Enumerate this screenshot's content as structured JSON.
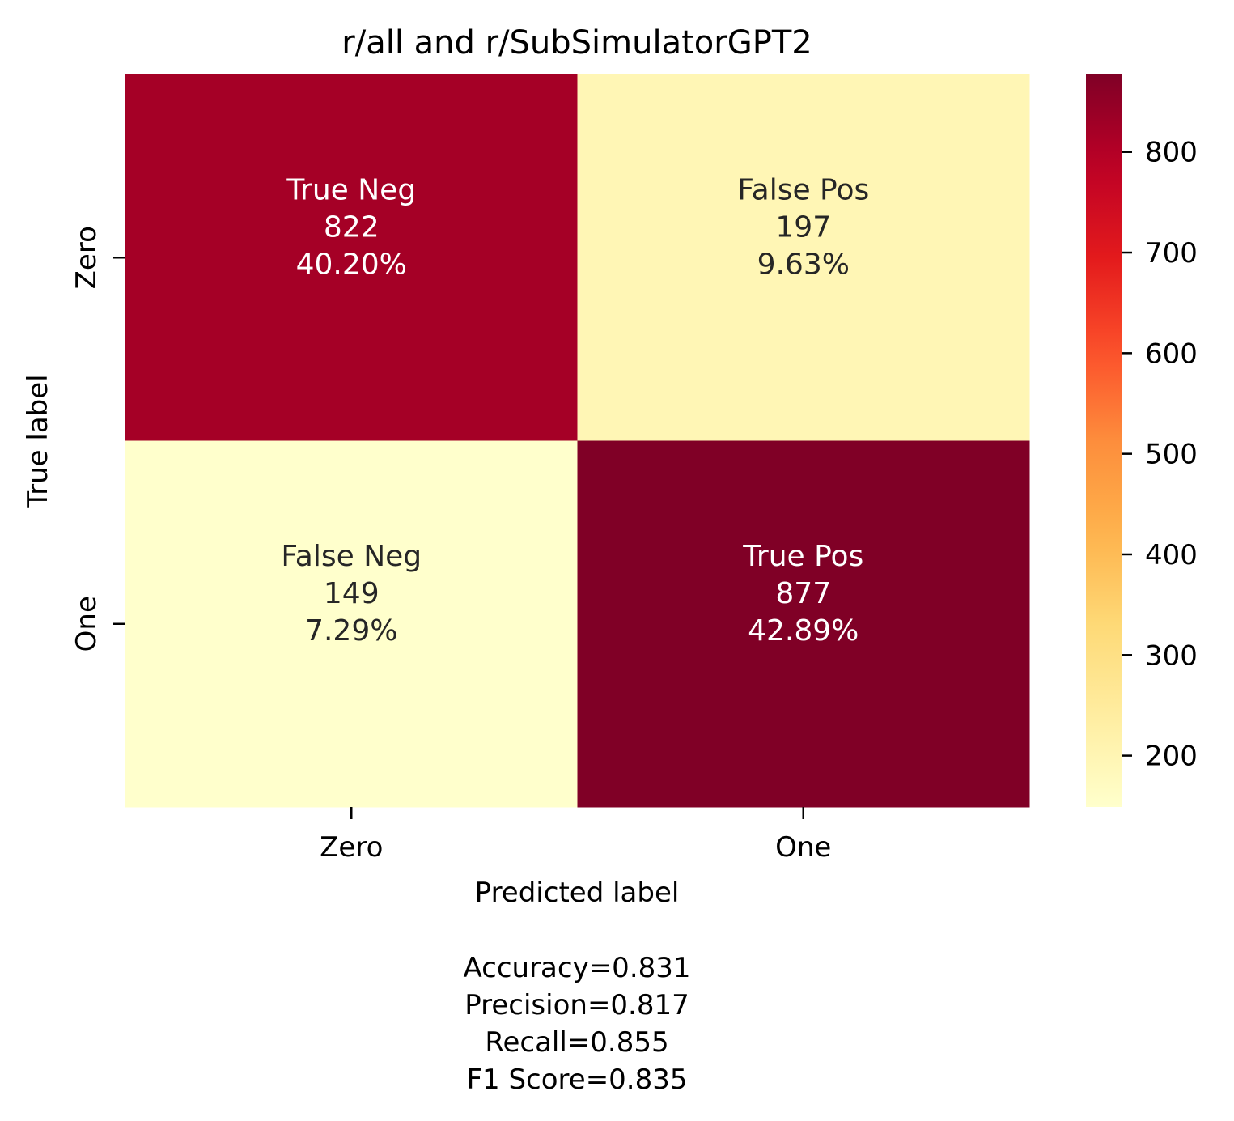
{
  "chart_data": {
    "type": "heatmap",
    "title": "r/all and r/SubSimulatorGPT2",
    "xlabel": "Predicted label",
    "ylabel": "True label",
    "x_categories": [
      "Zero",
      "One"
    ],
    "y_categories": [
      "Zero",
      "One"
    ],
    "cells": [
      [
        {
          "name": "True Neg",
          "count": "822",
          "percent": "40.20%",
          "value": 822
        },
        {
          "name": "False Pos",
          "count": "197",
          "percent": "9.63%",
          "value": 197
        }
      ],
      [
        {
          "name": "False Neg",
          "count": "149",
          "percent": "7.29%",
          "value": 149
        },
        {
          "name": "True Pos",
          "count": "877",
          "percent": "42.89%",
          "value": 877
        }
      ]
    ],
    "colorbar": {
      "colormap": "YlOrRd",
      "min": 149,
      "max": 877,
      "ticks": [
        200,
        300,
        400,
        500,
        600,
        700,
        800
      ]
    },
    "metrics": [
      "Accuracy=0.831",
      "Precision=0.817",
      "Recall=0.855",
      "F1 Score=0.835"
    ]
  }
}
